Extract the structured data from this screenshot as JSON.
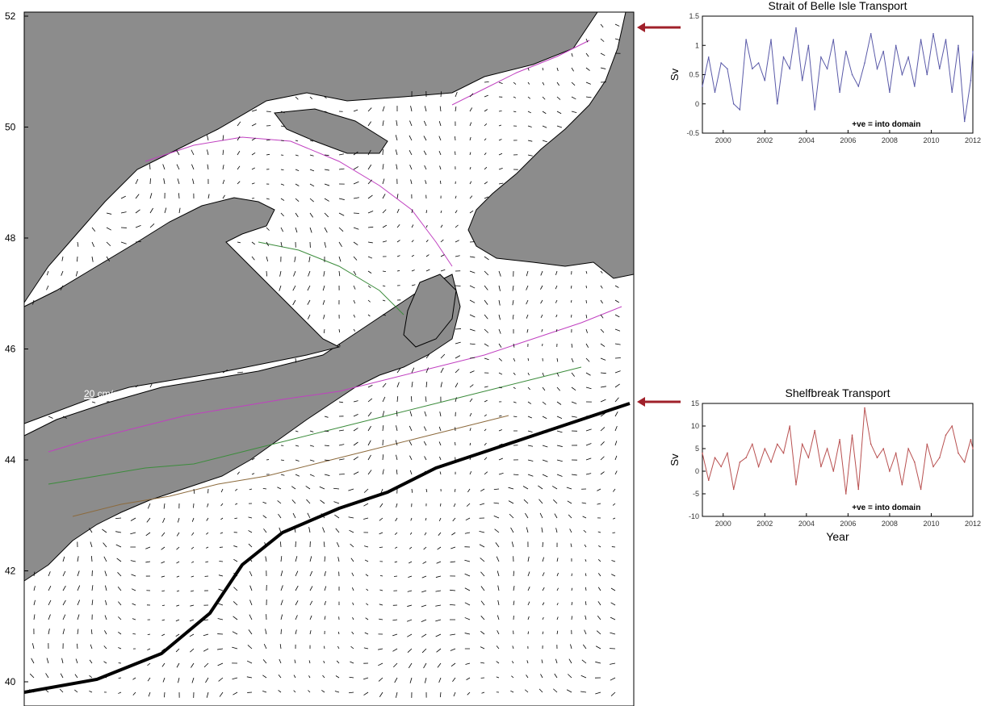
{
  "map": {
    "lat_ticks": [
      "40",
      "42",
      "44",
      "46",
      "48",
      "50",
      "52"
    ],
    "scale_label": "20 cm/s",
    "colors": {
      "land": "#8c8c8c",
      "ocean": "#ffffff",
      "coast": "#000000",
      "arrow": "#000000",
      "contour_magenta": "#c040c0",
      "contour_green": "#3c8c3c",
      "contour_brown": "#8c6a3c",
      "pointer_arrow": "#a0202a"
    }
  },
  "chart_data": [
    {
      "type": "line",
      "title": "Strait of Belle Isle Transport",
      "ylabel": "Sv",
      "xlabel": "",
      "annotation": "+ve = into domain",
      "xlim": [
        1999,
        2012
      ],
      "ylim": [
        -0.5,
        1.5
      ],
      "x_ticks": [
        2000,
        2002,
        2004,
        2006,
        2008,
        2010,
        2012
      ],
      "y_ticks": [
        "-0.5",
        "0",
        "0.5",
        "1",
        "1.5"
      ],
      "color": "#5a5aa8",
      "series": [
        {
          "x": [
            1999.0,
            1999.3,
            1999.6,
            1999.9,
            2000.2,
            2000.5,
            2000.8,
            2001.1,
            2001.4,
            2001.7,
            2002.0,
            2002.3,
            2002.6,
            2002.9,
            2003.2,
            2003.5,
            2003.8,
            2004.1,
            2004.4,
            2004.7,
            2005.0,
            2005.3,
            2005.6,
            2005.9,
            2006.2,
            2006.5,
            2006.8,
            2007.1,
            2007.4,
            2007.7,
            2008.0,
            2008.3,
            2008.6,
            2008.9,
            2009.2,
            2009.5,
            2009.8,
            2010.1,
            2010.4,
            2010.7,
            2011.0,
            2011.3,
            2011.6,
            2011.9,
            2012.0
          ],
          "values": [
            0.3,
            0.8,
            0.2,
            0.7,
            0.6,
            0.0,
            -0.1,
            1.1,
            0.6,
            0.7,
            0.4,
            1.1,
            0.0,
            0.8,
            0.6,
            1.3,
            0.4,
            1.0,
            -0.1,
            0.8,
            0.6,
            1.1,
            0.2,
            0.9,
            0.5,
            0.3,
            0.7,
            1.2,
            0.6,
            0.9,
            0.2,
            1.0,
            0.5,
            0.8,
            0.3,
            1.1,
            0.5,
            1.2,
            0.6,
            1.1,
            0.2,
            1.0,
            -0.3,
            0.4,
            0.9
          ]
        }
      ]
    },
    {
      "type": "line",
      "title": "Shelfbreak Transport",
      "ylabel": "Sv",
      "xlabel": "Year",
      "annotation": "+ve = into domain",
      "xlim": [
        1999,
        2012
      ],
      "ylim": [
        -10,
        15
      ],
      "x_ticks": [
        2000,
        2002,
        2004,
        2006,
        2008,
        2010,
        2012
      ],
      "y_ticks": [
        "-10",
        "-5",
        "0",
        "5",
        "10",
        "15"
      ],
      "color": "#b85050",
      "series": [
        {
          "x": [
            1999.0,
            1999.3,
            1999.6,
            1999.9,
            2000.2,
            2000.5,
            2000.8,
            2001.1,
            2001.4,
            2001.7,
            2002.0,
            2002.3,
            2002.6,
            2002.9,
            2003.2,
            2003.5,
            2003.8,
            2004.1,
            2004.4,
            2004.7,
            2005.0,
            2005.3,
            2005.6,
            2005.9,
            2006.2,
            2006.5,
            2006.8,
            2007.1,
            2007.4,
            2007.7,
            2008.0,
            2008.3,
            2008.6,
            2008.9,
            2009.2,
            2009.5,
            2009.8,
            2010.1,
            2010.4,
            2010.7,
            2011.0,
            2011.3,
            2011.6,
            2011.9,
            2012.0
          ],
          "values": [
            4,
            -2,
            3,
            1,
            4,
            -4,
            2,
            3,
            6,
            1,
            5,
            2,
            6,
            4,
            10,
            -3,
            6,
            3,
            9,
            1,
            5,
            0,
            7,
            -5,
            8,
            -4,
            14,
            6,
            3,
            5,
            0,
            4,
            -3,
            5,
            2,
            -4,
            6,
            1,
            3,
            8,
            10,
            4,
            2,
            7,
            5
          ]
        }
      ]
    }
  ]
}
